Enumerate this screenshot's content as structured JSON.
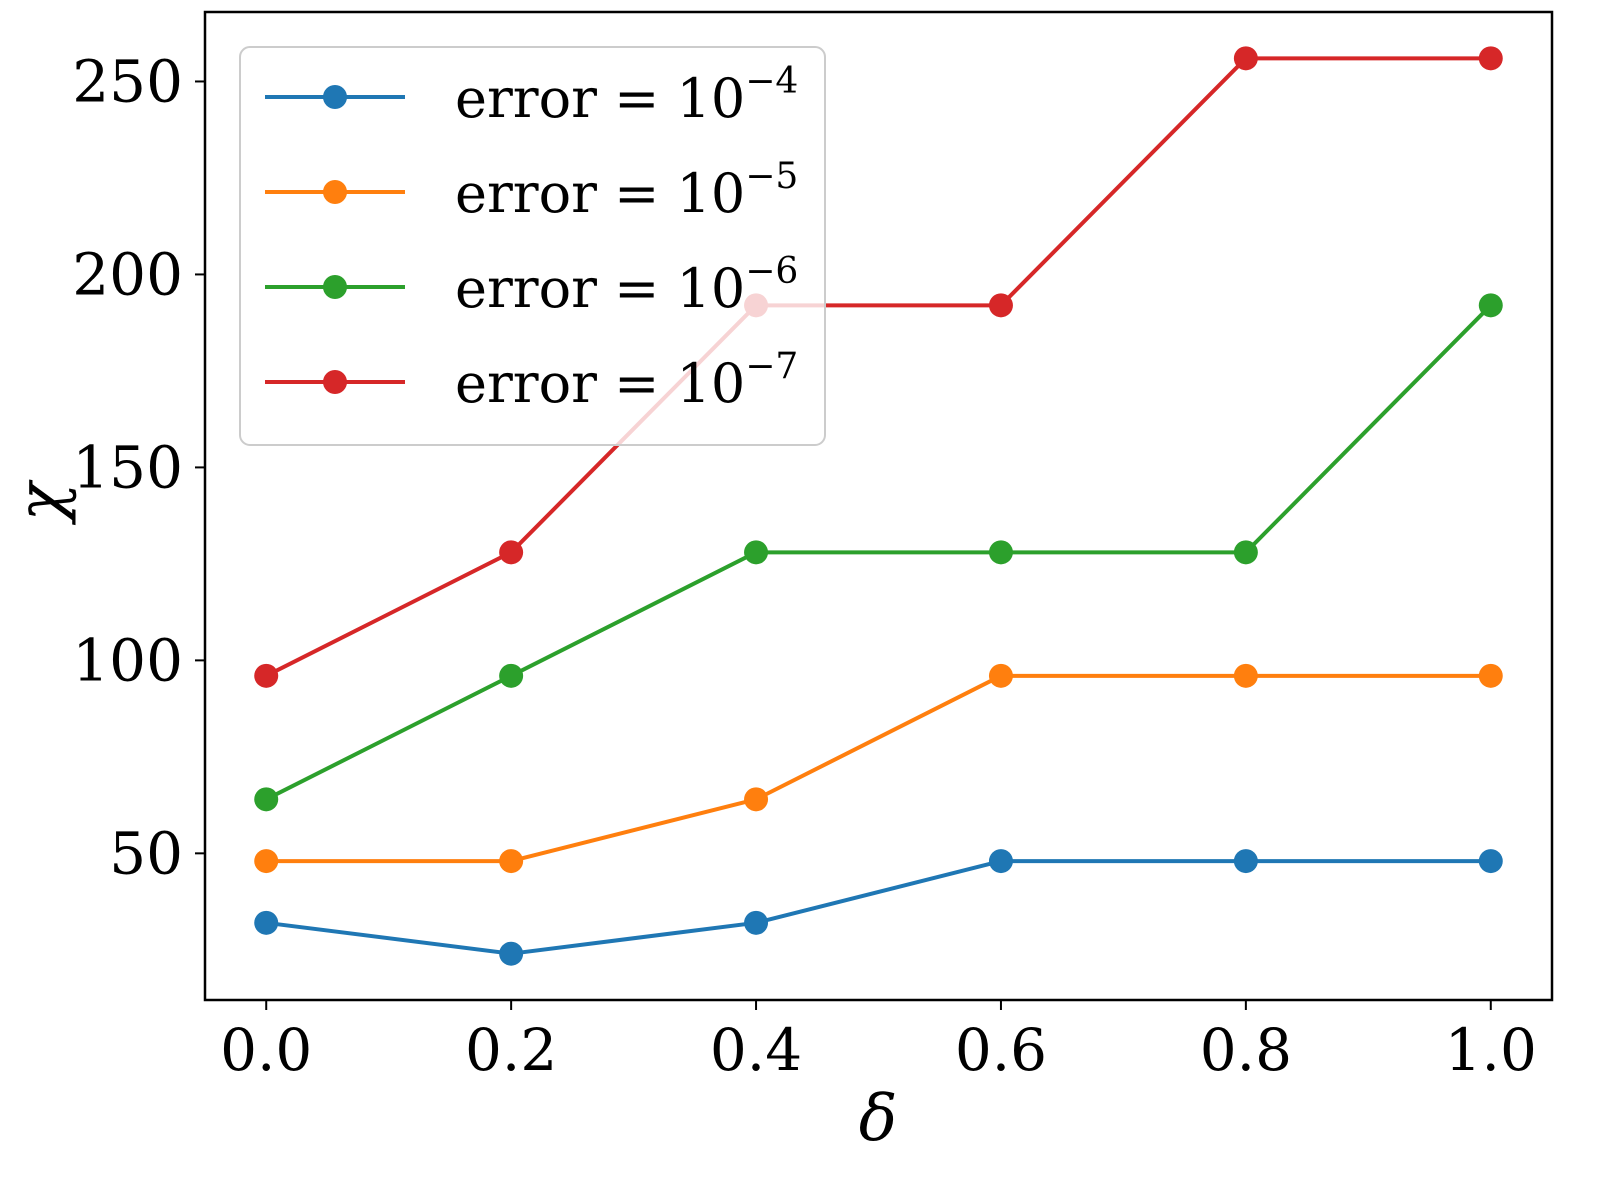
{
  "chart_data": {
    "type": "line",
    "title": "",
    "xlabel": "δ",
    "ylabel": "χ",
    "xlim": [
      -0.05,
      1.05
    ],
    "ylim": [
      12,
      268
    ],
    "xticks": [
      0.0,
      0.2,
      0.4,
      0.6,
      0.8,
      1.0
    ],
    "xtick_labels": [
      "0.0",
      "0.2",
      "0.4",
      "0.6",
      "0.8",
      "1.0"
    ],
    "yticks": [
      50,
      100,
      150,
      200,
      250
    ],
    "ytick_labels": [
      "50",
      "100",
      "150",
      "200",
      "250"
    ],
    "grid": false,
    "legend_position": "top-left",
    "x": [
      0.0,
      0.2,
      0.4,
      0.6,
      0.8,
      1.0
    ],
    "series": [
      {
        "name": "error = 10^-4",
        "label_base": "error = 10",
        "label_exp": "−4",
        "color": "#1f77b4",
        "values": [
          32,
          24,
          32,
          48,
          48,
          48
        ]
      },
      {
        "name": "error = 10^-5",
        "label_base": "error = 10",
        "label_exp": "−5",
        "color": "#ff7f0e",
        "values": [
          48,
          48,
          64,
          96,
          96,
          96
        ]
      },
      {
        "name": "error = 10^-6",
        "label_base": "error = 10",
        "label_exp": "−6",
        "color": "#2ca02c",
        "values": [
          64,
          96,
          128,
          128,
          128,
          192
        ]
      },
      {
        "name": "error = 10^-7",
        "label_base": "error = 10",
        "label_exp": "−7",
        "color": "#d62728",
        "values": [
          96,
          128,
          192,
          192,
          256,
          256
        ]
      }
    ]
  }
}
